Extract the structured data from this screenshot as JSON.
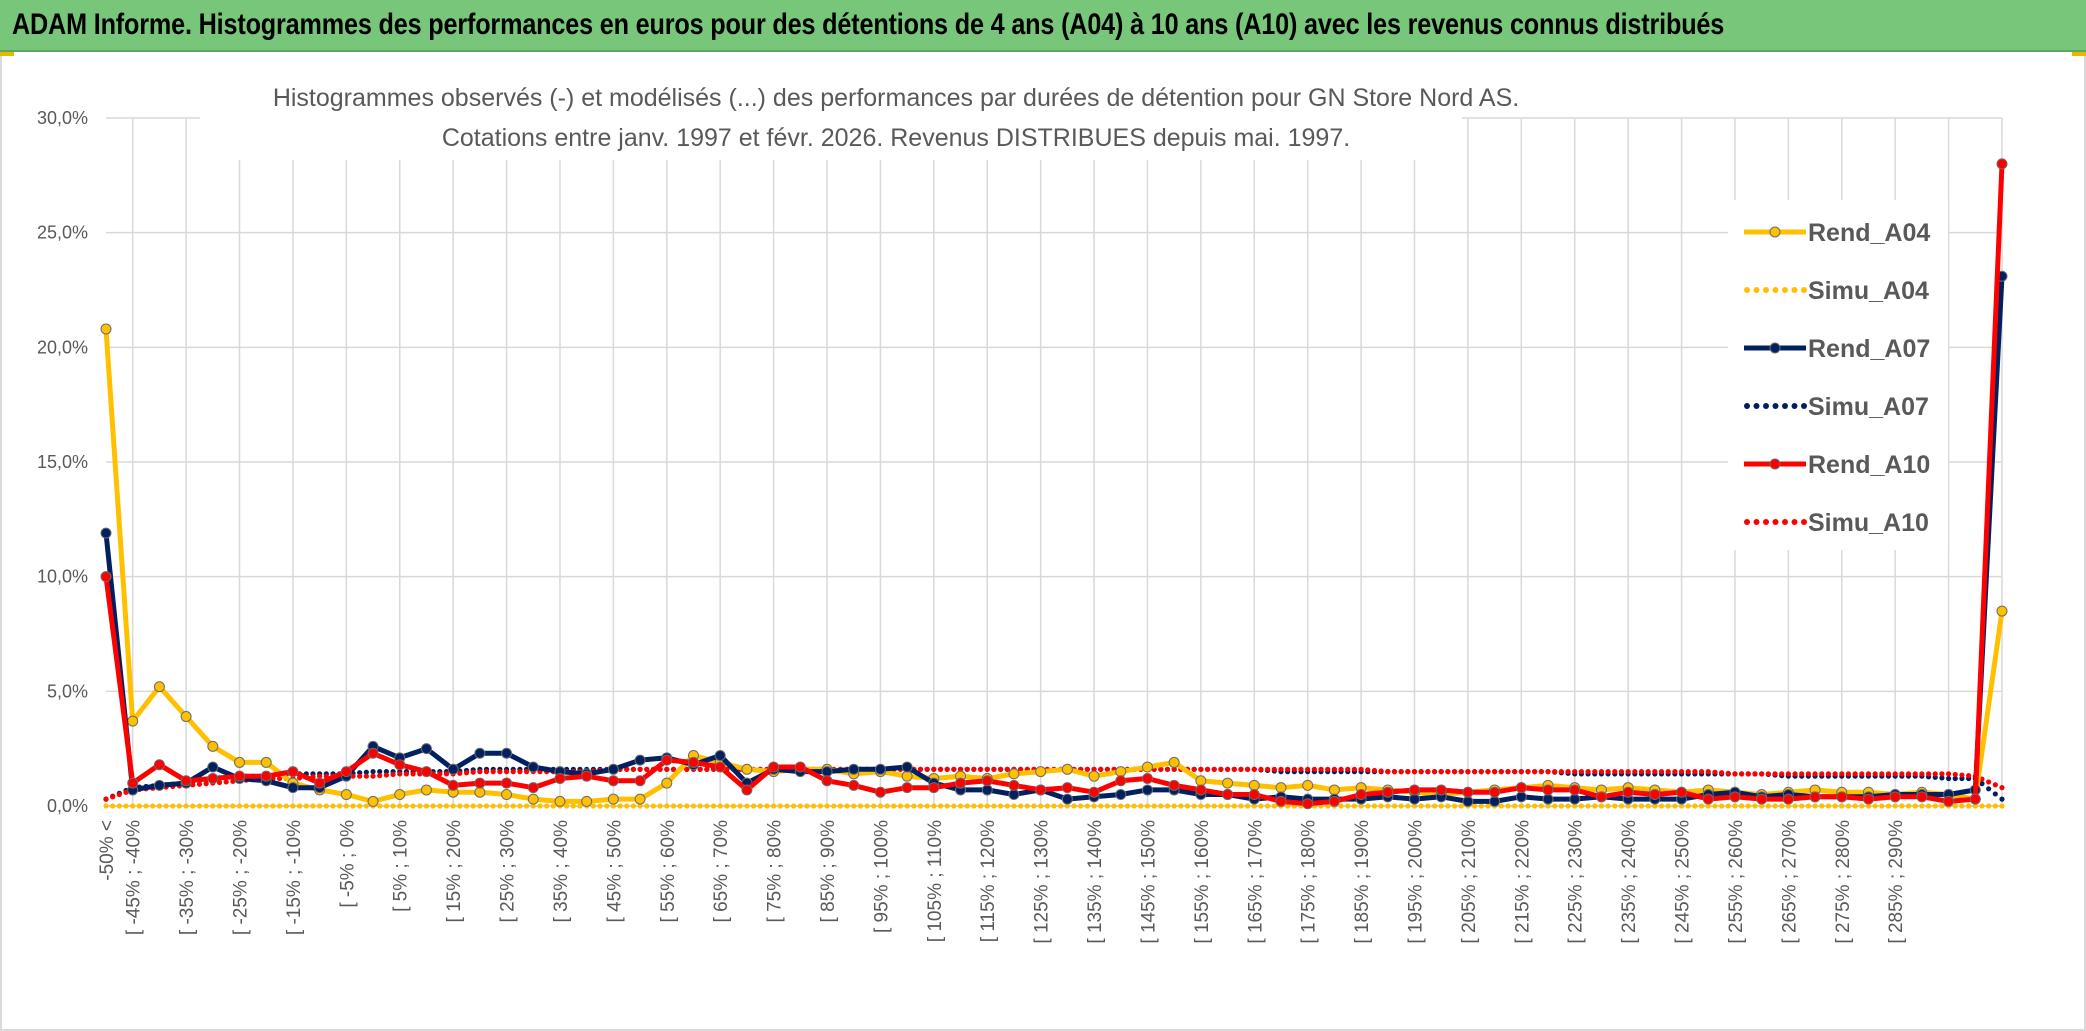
{
  "header": {
    "title": "ADAM Informe. Histogrammes des performances en euros pour des détentions de 4 ans (A04) à 10 ans (A10) avec les revenus connus distribués"
  },
  "chart_data": {
    "type": "line",
    "title_lines": [
      "Histogrammes observés (-) et modélisés (...) des performances par durées de détention pour GN Store Nord AS.",
      "Cotations entre janv. 1997 et févr. 2026. Revenus DISTRIBUES depuis mai. 1997."
    ],
    "xlabel": "",
    "ylabel": "",
    "ylim": [
      0,
      30
    ],
    "y_ticks": [
      "0,0%",
      "5,0%",
      "10,0%",
      "15,0%",
      "20,0%",
      "25,0%",
      "30,0%"
    ],
    "grid": true,
    "legend_position": "right",
    "x_tick_labels": [
      "-50% <",
      "[ -45% ; -40%",
      "[ -35% ; -30%",
      "[ -25% ; -20%",
      "[ -15% ; -10%",
      "[ -5% ; 0%",
      "[ 5% ; 10%",
      "[ 15% ; 20%",
      "[ 25% ; 30%",
      "[ 35% ; 40%",
      "[ 45% ; 50%",
      "[ 55% ; 60%",
      "[ 65% ; 70%",
      "[ 75% ; 80%",
      "[ 85% ; 90%",
      "[ 95% ; 100%",
      "[ 105% ; 110%",
      "[ 115% ; 120%",
      "[ 125% ; 130%",
      "[ 135% ; 140%",
      "[ 145% ; 150%",
      "[ 155% ; 160%",
      "[ 165% ; 170%",
      "[ 175% ; 180%",
      "[ 185% ; 190%",
      "[ 195% ; 200%",
      "[ 205% ; 210%",
      "[ 215% ; 220%",
      "[ 225% ; 230%",
      "[ 235% ; 240%",
      "[ 245% ; 250%",
      "[ 255% ; 260%",
      "[ 265% ; 270%",
      "[ 275% ; 280%",
      "[ 285% ; 290%"
    ],
    "series": [
      {
        "name": "Rend_A04",
        "style": "solid",
        "color": "#ffc000",
        "values": [
          20.8,
          3.7,
          5.2,
          3.9,
          2.6,
          1.9,
          1.9,
          1.0,
          0.7,
          0.5,
          0.2,
          0.5,
          0.7,
          0.6,
          0.6,
          0.5,
          0.3,
          0.2,
          0.2,
          0.3,
          0.3,
          1.0,
          2.2,
          1.9,
          1.6,
          1.5,
          1.6,
          1.6,
          1.4,
          1.5,
          1.3,
          1.2,
          1.3,
          1.2,
          1.4,
          1.5,
          1.6,
          1.3,
          1.5,
          1.7,
          1.9,
          1.1,
          1.0,
          0.9,
          0.8,
          0.9,
          0.7,
          0.8,
          0.7,
          0.6,
          0.5,
          0.6,
          0.7,
          0.8,
          0.9,
          0.8,
          0.7,
          0.8,
          0.7,
          0.6,
          0.7,
          0.6,
          0.5,
          0.6,
          0.7,
          0.6,
          0.6,
          0.5,
          0.6,
          0.5,
          0.3,
          8.5
        ]
      },
      {
        "name": "Simu_A04",
        "style": "dotted",
        "color": "#ffc000",
        "values": [
          0.0,
          0.0,
          0.0,
          0.0,
          0.0,
          0.0,
          0.0,
          0.0,
          0.0,
          0.0,
          0.0,
          0.0,
          0.0,
          0.0,
          0.0,
          0.0,
          0.0,
          0.0,
          0.0,
          0.0,
          0.0,
          0.0,
          0.0,
          0.0,
          0.0,
          0.0,
          0.0,
          0.0,
          0.0,
          0.0,
          0.0,
          0.0,
          0.0,
          0.0,
          0.0,
          0.0,
          0.0,
          0.0,
          0.0,
          0.0,
          0.0,
          0.0,
          0.0,
          0.0,
          0.0,
          0.0,
          0.0,
          0.0,
          0.0,
          0.0,
          0.0,
          0.0,
          0.0,
          0.0,
          0.0,
          0.0,
          0.0,
          0.0,
          0.0,
          0.0,
          0.0,
          0.0,
          0.0,
          0.0,
          0.0,
          0.0,
          0.0,
          0.0,
          0.0,
          0.0,
          0.0,
          0.0
        ]
      },
      {
        "name": "Rend_A07",
        "style": "solid",
        "color": "#002060",
        "values": [
          11.9,
          0.7,
          0.9,
          1.0,
          1.7,
          1.2,
          1.1,
          0.8,
          0.8,
          1.3,
          2.6,
          2.1,
          2.5,
          1.6,
          2.3,
          2.3,
          1.7,
          1.5,
          1.4,
          1.6,
          2.0,
          2.1,
          1.8,
          2.2,
          1.0,
          1.6,
          1.5,
          1.5,
          1.6,
          1.6,
          1.7,
          1.0,
          0.7,
          0.7,
          0.5,
          0.7,
          0.3,
          0.4,
          0.5,
          0.7,
          0.7,
          0.5,
          0.5,
          0.3,
          0.4,
          0.3,
          0.3,
          0.3,
          0.4,
          0.3,
          0.4,
          0.2,
          0.2,
          0.4,
          0.3,
          0.3,
          0.4,
          0.3,
          0.3,
          0.3,
          0.5,
          0.6,
          0.4,
          0.5,
          0.4,
          0.4,
          0.4,
          0.5,
          0.5,
          0.5,
          0.7,
          23.1
        ]
      },
      {
        "name": "Simu_A07",
        "style": "dotted",
        "color": "#002060",
        "values": [
          0.3,
          0.8,
          0.9,
          1.0,
          1.2,
          1.3,
          1.3,
          1.4,
          1.4,
          1.4,
          1.5,
          1.5,
          1.5,
          1.5,
          1.6,
          1.6,
          1.6,
          1.6,
          1.6,
          1.6,
          1.6,
          1.6,
          1.6,
          1.6,
          1.6,
          1.6,
          1.6,
          1.6,
          1.6,
          1.6,
          1.6,
          1.6,
          1.6,
          1.6,
          1.6,
          1.6,
          1.6,
          1.6,
          1.6,
          1.6,
          1.6,
          1.6,
          1.6,
          1.6,
          1.5,
          1.5,
          1.5,
          1.5,
          1.5,
          1.5,
          1.5,
          1.5,
          1.5,
          1.5,
          1.5,
          1.4,
          1.4,
          1.4,
          1.4,
          1.4,
          1.4,
          1.4,
          1.4,
          1.3,
          1.3,
          1.3,
          1.3,
          1.3,
          1.3,
          1.2,
          1.2,
          0.3
        ]
      },
      {
        "name": "Rend_A10",
        "style": "solid",
        "color": "#ff0000",
        "values": [
          10.0,
          1.0,
          1.8,
          1.1,
          1.2,
          1.3,
          1.3,
          1.5,
          1.0,
          1.5,
          2.3,
          1.8,
          1.5,
          0.9,
          1.0,
          1.0,
          0.8,
          1.2,
          1.3,
          1.1,
          1.1,
          2.0,
          1.9,
          1.7,
          0.7,
          1.7,
          1.7,
          1.1,
          0.9,
          0.6,
          0.8,
          0.8,
          1.0,
          1.1,
          0.9,
          0.7,
          0.8,
          0.6,
          1.1,
          1.2,
          0.9,
          0.7,
          0.5,
          0.5,
          0.2,
          0.1,
          0.2,
          0.5,
          0.6,
          0.7,
          0.7,
          0.6,
          0.6,
          0.8,
          0.7,
          0.7,
          0.4,
          0.6,
          0.5,
          0.6,
          0.3,
          0.4,
          0.3,
          0.3,
          0.4,
          0.4,
          0.3,
          0.4,
          0.4,
          0.2,
          0.3,
          28.0
        ]
      },
      {
        "name": "Simu_A10",
        "style": "dotted",
        "color": "#ff0000",
        "values": [
          0.3,
          0.7,
          0.8,
          0.9,
          1.0,
          1.1,
          1.2,
          1.2,
          1.3,
          1.3,
          1.3,
          1.4,
          1.4,
          1.4,
          1.5,
          1.5,
          1.5,
          1.5,
          1.5,
          1.6,
          1.6,
          1.6,
          1.6,
          1.6,
          1.6,
          1.6,
          1.6,
          1.6,
          1.6,
          1.6,
          1.6,
          1.6,
          1.6,
          1.6,
          1.6,
          1.6,
          1.6,
          1.6,
          1.6,
          1.6,
          1.6,
          1.6,
          1.6,
          1.6,
          1.6,
          1.6,
          1.6,
          1.6,
          1.5,
          1.5,
          1.5,
          1.5,
          1.5,
          1.5,
          1.5,
          1.5,
          1.5,
          1.5,
          1.5,
          1.5,
          1.5,
          1.4,
          1.4,
          1.4,
          1.4,
          1.4,
          1.4,
          1.4,
          1.4,
          1.4,
          1.3,
          0.8
        ]
      }
    ]
  }
}
